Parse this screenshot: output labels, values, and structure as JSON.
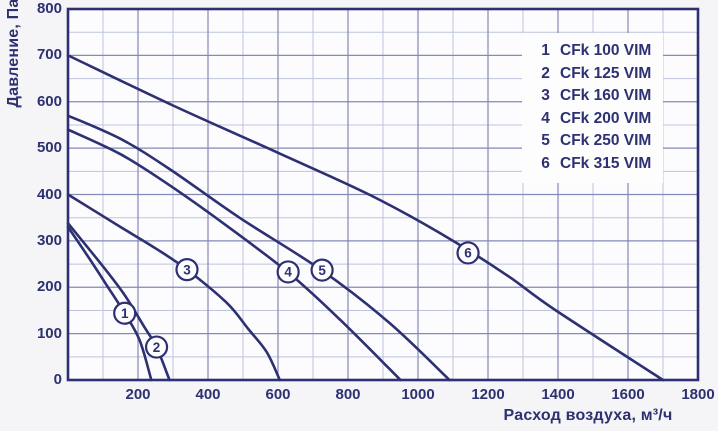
{
  "chart_data": {
    "type": "line",
    "xlabel": "Расход воздуха, м³/ч",
    "ylabel": "Давление, Па",
    "xlim": [
      0,
      1800
    ],
    "ylim": [
      0,
      800
    ],
    "x_major_step": 200,
    "x_minor_step": 100,
    "y_major_step": 100,
    "y_minor_step": 50,
    "x_tick_labels": [
      200,
      400,
      600,
      800,
      1000,
      1200,
      1400,
      1600,
      1800
    ],
    "y_tick_labels": [
      0,
      100,
      200,
      300,
      400,
      500,
      600,
      700,
      800
    ],
    "grid": "on",
    "legend_position": "top-right-inside",
    "series": [
      {
        "num": "1",
        "name": "CFk 100 VIM",
        "points": [
          [
            0,
            330
          ],
          [
            60,
            263
          ],
          [
            111,
            204
          ],
          [
            162,
            144
          ],
          [
            205,
            85
          ],
          [
            238,
            0
          ]
        ],
        "marker": [
          162,
          144
        ]
      },
      {
        "num": "2",
        "name": "CFk 125 VIM",
        "points": [
          [
            0,
            338
          ],
          [
            100,
            245
          ],
          [
            162,
            183
          ],
          [
            220,
            112
          ],
          [
            253,
            71
          ],
          [
            290,
            0
          ]
        ],
        "marker": [
          253,
          71
        ]
      },
      {
        "num": "3",
        "name": "CFk 160 VIM",
        "points": [
          [
            0,
            400
          ],
          [
            150,
            330
          ],
          [
            250,
            284
          ],
          [
            340,
            238
          ],
          [
            453,
            167
          ],
          [
            515,
            110
          ],
          [
            568,
            60
          ],
          [
            605,
            0
          ]
        ],
        "marker": [
          340,
          238
        ]
      },
      {
        "num": "4",
        "name": "CFk 200 VIM",
        "points": [
          [
            0,
            540
          ],
          [
            150,
            487
          ],
          [
            290,
            420
          ],
          [
            440,
            340
          ],
          [
            629,
            232
          ],
          [
            780,
            128
          ],
          [
            950,
            0
          ]
        ],
        "marker": [
          629,
          233
        ]
      },
      {
        "num": "5",
        "name": "CFk 250 VIM",
        "points": [
          [
            0,
            570
          ],
          [
            150,
            520
          ],
          [
            290,
            455
          ],
          [
            490,
            350
          ],
          [
            726,
            236
          ],
          [
            920,
            122
          ],
          [
            1090,
            0
          ]
        ],
        "marker": [
          726,
          237
        ]
      },
      {
        "num": "6",
        "name": "CFk 315 VIM",
        "points": [
          [
            0,
            700
          ],
          [
            300,
            592
          ],
          [
            600,
            490
          ],
          [
            860,
            400
          ],
          [
            1060,
            318
          ],
          [
            1250,
            228
          ],
          [
            1390,
            152
          ],
          [
            1700,
            0
          ]
        ],
        "marker": [
          1143,
          274
        ]
      }
    ],
    "colors": {
      "curve": "#2d3071",
      "text": "#2d3071",
      "axis_border": "#2d3071",
      "grid_major": "#8489b6",
      "grid_minor": "#bfc3dd",
      "plot_bg": "#fcfcfe",
      "page_bg": "#f5f5f7",
      "legend_bg": "#fdfdfe",
      "marker_fill": "#fdfdfe"
    }
  }
}
